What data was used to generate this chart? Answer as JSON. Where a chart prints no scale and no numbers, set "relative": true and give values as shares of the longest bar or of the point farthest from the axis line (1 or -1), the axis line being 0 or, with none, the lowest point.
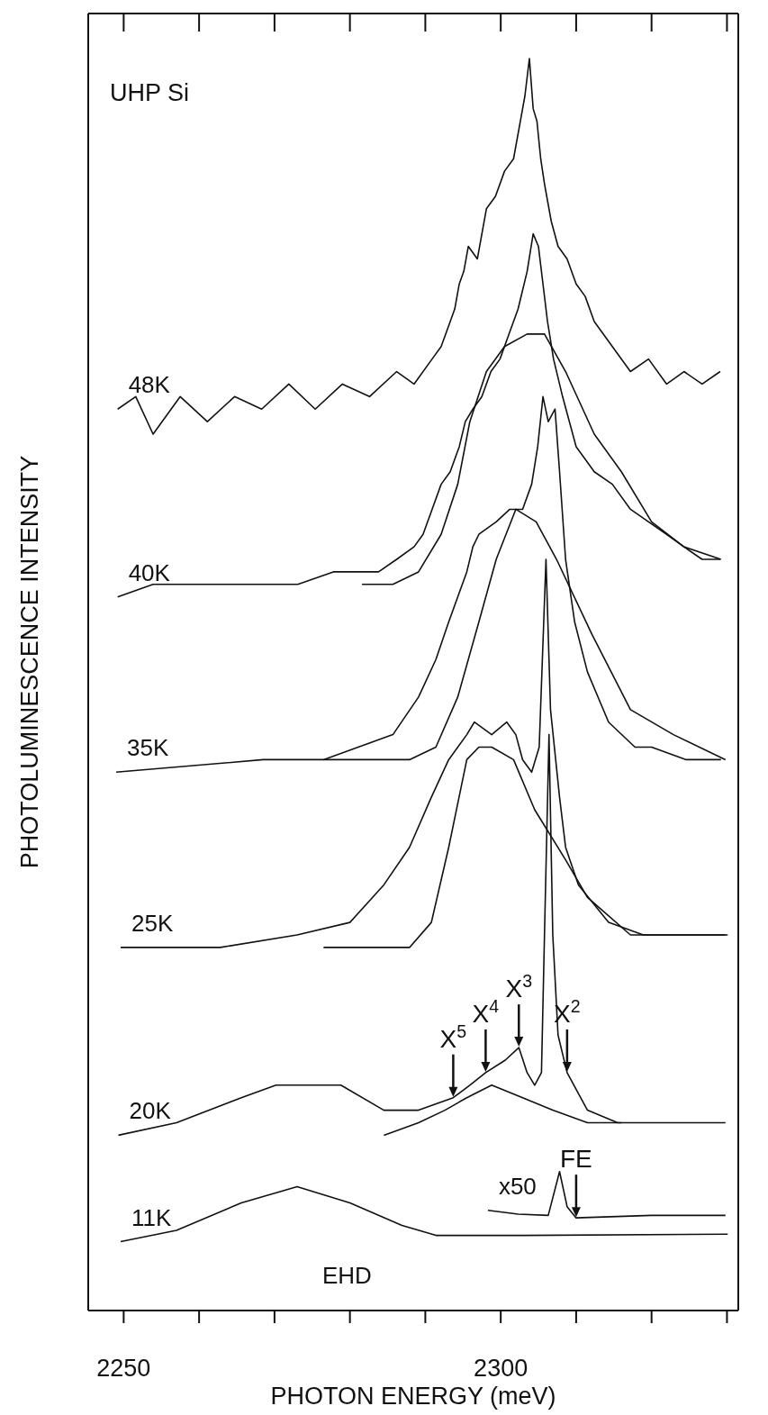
{
  "chart_data": {
    "type": "line",
    "title": "UHP Si",
    "xlabel": "PHOTON ENERGY (meV)",
    "ylabel": "PHOTOLUMINESCENCE INTENSITY",
    "relative": true,
    "tick_labels": "x",
    "xlim": [
      2245.3,
      2331.5
    ],
    "xticks": [
      2250,
      {
        "value": 2260,
        "label": null
      },
      {
        "value": 2270,
        "label": null
      },
      {
        "value": 2280,
        "label": null
      },
      {
        "value": 2290,
        "label": null
      },
      2300,
      {
        "value": 2310,
        "label": null
      },
      {
        "value": 2320,
        "label": null
      },
      {
        "value": 2330,
        "label": null
      }
    ],
    "series": [
      {
        "name": "48K",
        "color": "#111111",
        "x": [
          2249.2,
          2251.6,
          2253.9,
          2257.5,
          2261.1,
          2264.7,
          2268.3,
          2271.9,
          2275.4,
          2279.0,
          2282.6,
          2286.2,
          2288.5,
          2290.9,
          2292.1,
          2293.3,
          2293.9,
          2294.5,
          2295.1,
          2295.7,
          2296.9,
          2298.1,
          2299.3,
          2300.5,
          2301.7,
          2302.6,
          2303.2,
          2303.8,
          2304.3,
          2304.8,
          2305.3,
          2305.8,
          2306.7,
          2307.6,
          2308.8,
          2310.0,
          2311.2,
          2312.4,
          2314.8,
          2317.2,
          2319.6,
          2322.0,
          2324.3,
          2326.7,
          2329.1
        ],
        "values": [
          0.72,
          0.73,
          0.7,
          0.73,
          0.71,
          0.73,
          0.72,
          0.74,
          0.72,
          0.74,
          0.73,
          0.75,
          0.74,
          0.76,
          0.77,
          0.79,
          0.8,
          0.82,
          0.83,
          0.85,
          0.84,
          0.88,
          0.89,
          0.91,
          0.92,
          0.95,
          0.97,
          1.0,
          0.96,
          0.95,
          0.92,
          0.9,
          0.87,
          0.85,
          0.84,
          0.82,
          0.81,
          0.79,
          0.77,
          0.75,
          0.76,
          0.74,
          0.75,
          0.74,
          0.75
        ]
      },
      {
        "name": "40K",
        "color": "#111111",
        "x": [
          2249.2,
          2253.9,
          2258.7,
          2263.5,
          2268.3,
          2273.1,
          2277.8,
          2281.4,
          2283.8,
          2286.2,
          2288.5,
          2289.7,
          2290.9,
          2292.1,
          2293.3,
          2294.5,
          2295.3,
          2296.3,
          2297.5,
          2298.7,
          2299.9,
          2301.1,
          2302.3,
          2303.5,
          2304.3,
          2305.0,
          2305.6,
          2306.2,
          2307.0,
          2308.2,
          2310.0,
          2312.4,
          2314.8,
          2317.2,
          2319.6,
          2322.0,
          2324.3,
          2326.7,
          2329.1
        ],
        "values": [
          0.57,
          0.58,
          0.58,
          0.58,
          0.58,
          0.58,
          0.59,
          0.59,
          0.59,
          0.6,
          0.61,
          0.62,
          0.64,
          0.66,
          0.67,
          0.69,
          0.71,
          0.72,
          0.73,
          0.75,
          0.76,
          0.78,
          0.8,
          0.83,
          0.86,
          0.85,
          0.82,
          0.79,
          0.76,
          0.73,
          0.69,
          0.67,
          0.66,
          0.64,
          0.63,
          0.62,
          0.61,
          0.6,
          0.6
        ]
      },
      {
        "name": "35K",
        "color": "#111111",
        "x": [
          2249.0,
          2268.5,
          2276.5,
          2281.1,
          2285.7,
          2289.1,
          2291.4,
          2293.1,
          2294.3,
          2295.5,
          2296.3,
          2297.1,
          2299.4,
          2301.2,
          2302.9,
          2304.1,
          2304.9,
          2305.6,
          2306.3,
          2307.2,
          2307.8,
          2308.6,
          2309.8,
          2311.5,
          2314.3,
          2317.8,
          2320.0,
          2324.6,
          2329.2
        ],
        "values": [
          0.43,
          0.44,
          0.44,
          0.45,
          0.46,
          0.49,
          0.52,
          0.55,
          0.57,
          0.59,
          0.61,
          0.62,
          0.63,
          0.64,
          0.64,
          0.66,
          0.69,
          0.73,
          0.71,
          0.72,
          0.67,
          0.6,
          0.55,
          0.51,
          0.47,
          0.45,
          0.45,
          0.44,
          0.44
        ]
      },
      {
        "name": "25K",
        "color": "#111111",
        "x": [
          2249.6,
          2262.8,
          2273.0,
          2280.0,
          2284.5,
          2287.9,
          2290.8,
          2293.1,
          2295.5,
          2296.5,
          2298.8,
          2300.8,
          2302.0,
          2302.9,
          2304.1,
          2305.1,
          2306.0,
          2306.6,
          2307.8,
          2308.6,
          2310.3,
          2314.3,
          2318.9,
          2323.5,
          2330.1
        ],
        "values": [
          0.29,
          0.29,
          0.3,
          0.31,
          0.34,
          0.37,
          0.41,
          0.44,
          0.46,
          0.47,
          0.46,
          0.47,
          0.46,
          0.44,
          0.43,
          0.45,
          0.6,
          0.48,
          0.41,
          0.37,
          0.34,
          0.31,
          0.3,
          0.3,
          0.3
        ]
      },
      {
        "name": "20K",
        "color": "#111111",
        "x": [
          2249.3,
          2257.0,
          2265.6,
          2270.2,
          2274.2,
          2278.8,
          2284.5,
          2289.1,
          2293.7,
          2295.9,
          2298.0,
          2300.6,
          2302.4,
          2303.5,
          2304.5,
          2305.4,
          2305.8,
          2306.4,
          2306.9,
          2307.6,
          2308.8,
          2311.5,
          2315.5,
          2320.0,
          2329.8
        ],
        "values": [
          0.14,
          0.15,
          0.17,
          0.18,
          0.18,
          0.18,
          0.16,
          0.16,
          0.17,
          0.18,
          0.19,
          0.2,
          0.21,
          0.19,
          0.18,
          0.19,
          0.3,
          0.46,
          0.3,
          0.22,
          0.19,
          0.16,
          0.15,
          0.15,
          0.15
        ]
      },
      {
        "name": "11K",
        "color": "#111111",
        "x": [
          2249.6,
          2257.0,
          2265.6,
          2273.0,
          2280.0,
          2286.9,
          2291.4,
          2302.9,
          2330.1
        ],
        "values": [
          0.055,
          0.064,
          0.086,
          0.099,
          0.086,
          0.068,
          0.06,
          0.06,
          0.061
        ]
      },
      {
        "name": "x50",
        "color": "#111111",
        "x": [
          2298.3,
          2302.3,
          2306.3,
          2307.8,
          2308.8,
          2310.0,
          2320.0,
          2329.8
        ],
        "values": [
          0.08,
          0.077,
          0.076,
          0.111,
          0.083,
          0.074,
          0.076,
          0.076
        ]
      },
      {
        "color": "#111111",
        "x": [
          2281.6,
          2285.7,
          2289.1,
          2292.1,
          2294.3,
          2295.9,
          2298.1,
          2300.5,
          2303.5,
          2305.8,
          2308.6,
          2312.4,
          2316.0,
          2320.0,
          2324.3,
          2329.2
        ],
        "values": [
          0.58,
          0.58,
          0.59,
          0.62,
          0.66,
          0.71,
          0.75,
          0.77,
          0.78,
          0.78,
          0.75,
          0.7,
          0.67,
          0.63,
          0.61,
          0.6
        ]
      },
      {
        "color": "#111111",
        "x": [
          2276.5,
          2287.9,
          2291.4,
          2294.3,
          2297.1,
          2299.4,
          2302.0,
          2304.7,
          2307.4,
          2312.1,
          2317.2,
          2322.9,
          2329.8
        ],
        "values": [
          0.44,
          0.44,
          0.45,
          0.49,
          0.55,
          0.6,
          0.64,
          0.63,
          0.6,
          0.54,
          0.48,
          0.46,
          0.44
        ]
      },
      {
        "color": "#111111",
        "x": [
          2276.5,
          2287.9,
          2290.8,
          2293.1,
          2295.5,
          2297.1,
          2298.8,
          2301.7,
          2304.5,
          2308.6,
          2311.5,
          2317.2,
          2322.9,
          2329.8
        ],
        "values": [
          0.29,
          0.29,
          0.31,
          0.37,
          0.44,
          0.45,
          0.45,
          0.44,
          0.4,
          0.36,
          0.33,
          0.3,
          0.3,
          0.3
        ]
      },
      {
        "color": "#111111",
        "x": [
          2284.5,
          2289.1,
          2292.6,
          2295.5,
          2298.8,
          2302.9,
          2306.9,
          2311.5,
          2316.0
        ],
        "values": [
          0.14,
          0.15,
          0.16,
          0.17,
          0.18,
          0.17,
          0.16,
          0.15,
          0.15
        ]
      }
    ],
    "annotations": [
      {
        "text": "X$^{5}$",
        "x": 2293.7,
        "y": 0.17
      },
      {
        "text": "X$^{4}$",
        "x": 2298.0,
        "y": 0.19
      },
      {
        "text": "X$^{3}$",
        "x": 2302.4,
        "y": 0.21
      },
      {
        "text": "X$^{2}$",
        "x": 2308.8,
        "y": 0.19
      },
      {
        "text": "FE",
        "x": 2310.0,
        "y": 0.074
      },
      "EHD"
    ]
  }
}
